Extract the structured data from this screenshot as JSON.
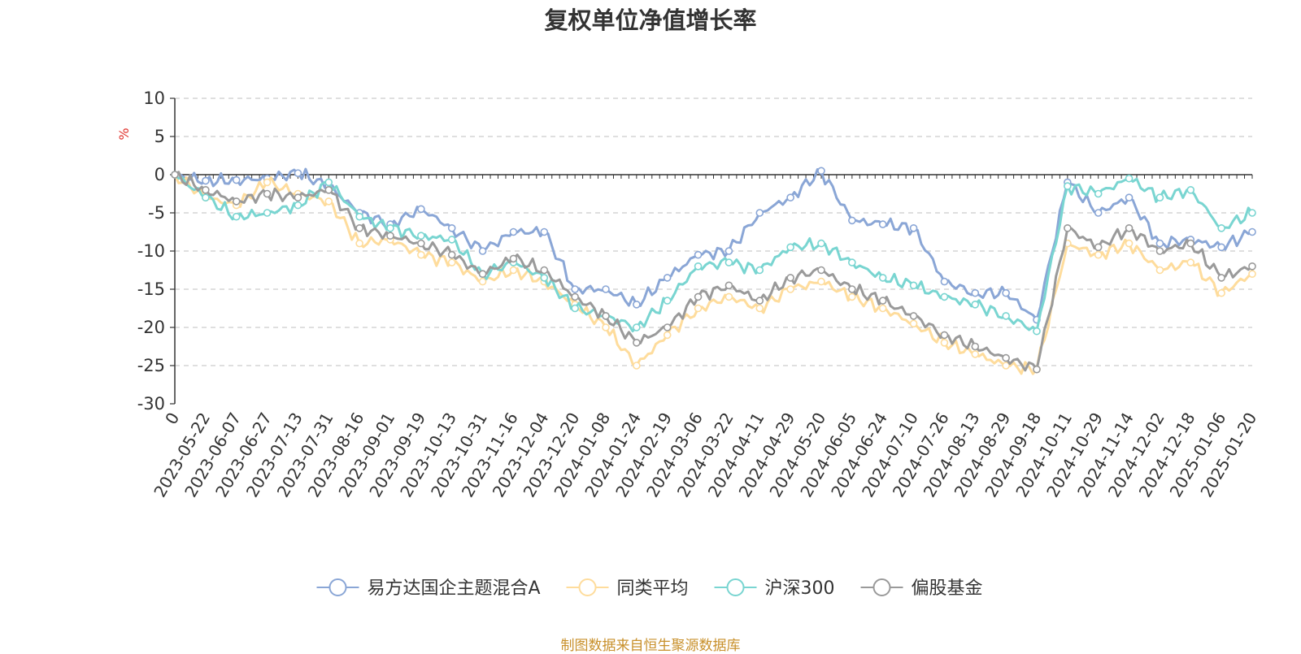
{
  "chart_data": {
    "type": "line",
    "title": "复权单位净值增长率",
    "ylabel": "%",
    "ylim": [
      -30,
      10
    ],
    "yticks": [
      10,
      5,
      0,
      -5,
      -10,
      -15,
      -20,
      -25,
      -30
    ],
    "grid": true,
    "legend_position": "bottom",
    "x_ticks": [
      "0",
      "2023-05-22",
      "2023-06-07",
      "2023-06-27",
      "2023-07-13",
      "2023-07-31",
      "2023-08-16",
      "2023-09-01",
      "2023-09-19",
      "2023-10-13",
      "2023-10-31",
      "2023-11-16",
      "2023-12-04",
      "2023-12-20",
      "2024-01-08",
      "2024-01-24",
      "2024-02-19",
      "2024-03-06",
      "2024-03-22",
      "2024-04-11",
      "2024-04-29",
      "2024-05-20",
      "2024-06-05",
      "2024-06-24",
      "2024-07-10",
      "2024-07-26",
      "2024-08-13",
      "2024-08-29",
      "2024-09-18",
      "2024-10-11",
      "2024-10-29",
      "2024-11-14",
      "2024-12-02",
      "2024-12-18",
      "2025-01-06",
      "2025-01-20"
    ],
    "series": [
      {
        "name": "易方达国企主题混合A",
        "color": "#8aa6d6",
        "values": [
          0,
          -0.8,
          -0.7,
          -0.5,
          0.2,
          -1.5,
          -5,
          -6.5,
          -4.5,
          -7,
          -10,
          -7.5,
          -7.5,
          -15,
          -15,
          -17,
          -13.5,
          -10.5,
          -10,
          -5,
          -3,
          0.5,
          -6,
          -6.5,
          -7,
          -14,
          -15.5,
          -15.5,
          -19,
          -1,
          -5,
          -3,
          -9,
          -8.5,
          -9.5,
          -7.5
        ]
      },
      {
        "name": "同类平均",
        "color": "#fedc9c",
        "values": [
          0,
          -3,
          -4,
          -1,
          -2.5,
          -3.5,
          -9,
          -8.5,
          -10.5,
          -11.5,
          -14,
          -12.5,
          -14,
          -17,
          -20,
          -25,
          -21,
          -17.5,
          -16,
          -17.5,
          -15,
          -14,
          -16,
          -17.5,
          -19.5,
          -22,
          -23.5,
          -25,
          -25.5,
          -9,
          -10.5,
          -9,
          -12.5,
          -11.5,
          -15.5,
          -13
        ]
      },
      {
        "name": "沪深300",
        "color": "#79d5d1",
        "values": [
          0,
          -3,
          -5.5,
          -5,
          -4,
          -1,
          -5.5,
          -7,
          -8,
          -8.5,
          -13,
          -11.5,
          -13.5,
          -17.5,
          -18.5,
          -20,
          -16.5,
          -12,
          -11.5,
          -12.5,
          -9.5,
          -9,
          -11.5,
          -13.5,
          -14.5,
          -16,
          -17,
          -18.5,
          -20.5,
          -1.5,
          -2.5,
          -0.5,
          -3,
          -2,
          -7,
          -5
        ]
      },
      {
        "name": "偏股基金",
        "color": "#9a9a9a",
        "values": [
          0,
          -2,
          -3.5,
          -2.5,
          -3,
          -2,
          -7,
          -8,
          -9,
          -10.5,
          -13,
          -11,
          -12.5,
          -16,
          -18.5,
          -22,
          -20,
          -16,
          -14.5,
          -16.5,
          -13.5,
          -12.5,
          -15,
          -16.5,
          -18.5,
          -21,
          -22.5,
          -24,
          -25.5,
          -7,
          -9.5,
          -7,
          -10,
          -9,
          -13.5,
          -12
        ]
      }
    ]
  },
  "source_note": "制图数据来自恒生聚源数据库"
}
